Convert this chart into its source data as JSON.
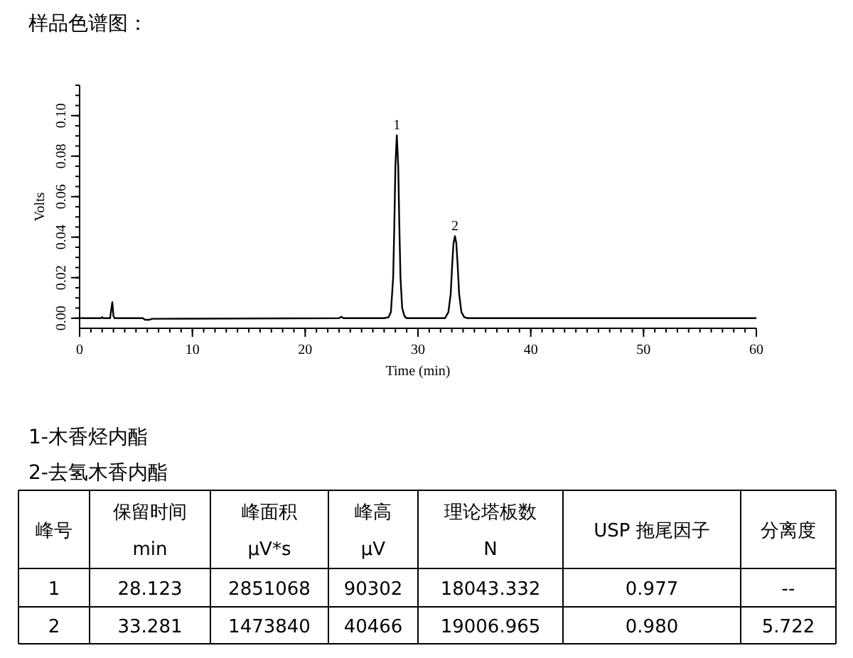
{
  "chart_data": {
    "type": "line",
    "title": "样品色谱图：",
    "xlabel": "Time (min)",
    "ylabel": "Volts",
    "xlim": [
      0,
      60
    ],
    "xticks": [
      0,
      10,
      20,
      30,
      40,
      50,
      60
    ],
    "ylim": [
      -0.005,
      0.115
    ],
    "yticks": [
      {
        "value": 0,
        "label": "0.00"
      },
      {
        "value": 0.02,
        "label": "0.02"
      },
      {
        "value": 0.04,
        "label": "0.04"
      },
      {
        "value": 0.06,
        "label": "0.06"
      },
      {
        "value": 0.08,
        "label": "0.08"
      },
      {
        "value": 0.1,
        "label": "0.10"
      }
    ],
    "grid": false,
    "marker": "none",
    "line_style": "solid",
    "series": [
      {
        "color": "#000000",
        "x": [
          0,
          1.9,
          2.0,
          2.1,
          2.7,
          2.8,
          2.9,
          3.0,
          3.1,
          5.6,
          5.8,
          6.2,
          6.4,
          23.0,
          23.2,
          23.4,
          27.0,
          27.4,
          27.6,
          27.8,
          27.9,
          28.0,
          28.123,
          28.25,
          28.35,
          28.45,
          28.6,
          28.8,
          29.0,
          32.4,
          32.7,
          32.9,
          33.05,
          33.15,
          33.281,
          33.4,
          33.5,
          33.65,
          33.85,
          34.1,
          34.4,
          60
        ],
        "values": [
          0,
          0,
          0.0005,
          0,
          0,
          0.004,
          0.0079,
          0.001,
          0,
          0,
          -0.0008,
          -0.0008,
          -0.0003,
          0,
          0.0007,
          0,
          0,
          0.0005,
          0.003,
          0.02,
          0.045,
          0.075,
          0.0903,
          0.075,
          0.045,
          0.02,
          0.005,
          0.001,
          0,
          0,
          0.003,
          0.012,
          0.028,
          0.037,
          0.0405,
          0.037,
          0.028,
          0.012,
          0.003,
          0.0005,
          0,
          0
        ]
      }
    ],
    "annotations": [
      {
        "text": "1",
        "x": 28.123,
        "y": 0.0903
      },
      {
        "text": "2",
        "x": 33.281,
        "y": 0.0405
      },
      "1-木香烃内酯",
      "2-去氢木香内酯",
      "峰号",
      "保留时间\nmin",
      "峰面积\nµV*s",
      "峰高\nµV",
      "理论塔板数\nN",
      "USP 拖尾因子",
      "分离度",
      "1",
      "28.123",
      "2851068",
      "90302",
      "18043.332",
      "0.977",
      "--",
      "2",
      "33.281",
      "1473840",
      "40466",
      "19006.965",
      "0.980",
      "5.722"
    ]
  }
}
